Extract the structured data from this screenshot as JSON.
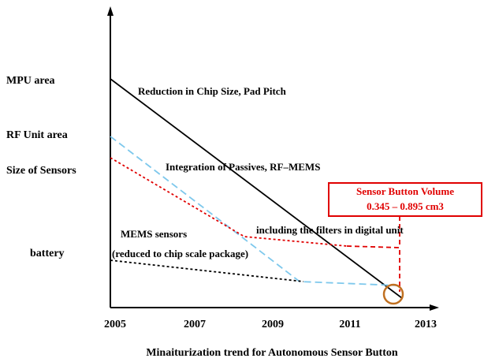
{
  "y_labels": [
    "MPU area",
    "RF Unit area",
    "Size of Sensors",
    "battery"
  ],
  "x_labels": [
    "2005",
    "2007",
    "2009",
    "2011",
    "2013"
  ],
  "annotations": {
    "chip": "Reduction in Chip Size, Pad Pitch",
    "passives": "Integration of Passives, RF–MEMS",
    "mems": "MEMS sensors",
    "mems_note": "(reduced to chip scale package)",
    "filters": "including the filters in digital unit"
  },
  "box": {
    "title": "Sensor Button Volume",
    "value": "0.345 – 0.895 cm3"
  },
  "caption": "Minaiturization trend for Autonomous Sensor Button"
}
